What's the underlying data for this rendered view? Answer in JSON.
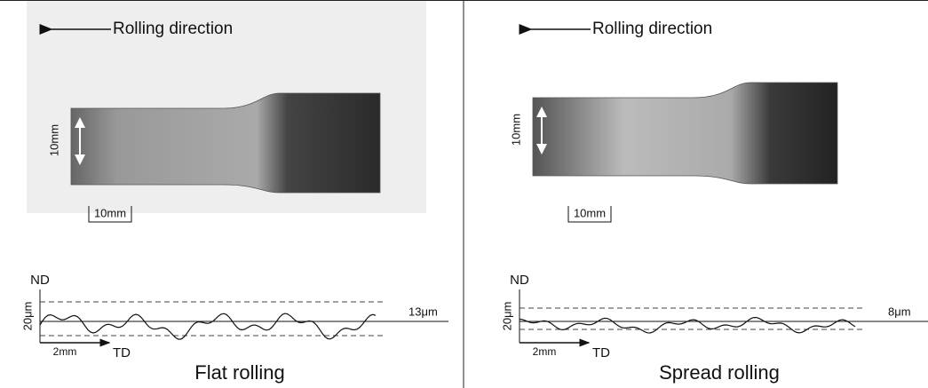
{
  "panels": [
    {
      "direction_label": "Rolling direction",
      "width_label": "10mm",
      "scale_label": "10mm",
      "nd_label": "ND",
      "height_label": "20μm",
      "roughness_label": "13μm",
      "td_scale_label": "2mm",
      "td_label": "TD",
      "caption": "Flat rolling"
    },
    {
      "direction_label": "Rolling direction",
      "width_label": "10mm",
      "scale_label": "10mm",
      "nd_label": "ND",
      "height_label": "20μm",
      "roughness_label": "8μm",
      "td_scale_label": "2mm",
      "td_label": "TD",
      "caption": "Spread rolling"
    }
  ]
}
